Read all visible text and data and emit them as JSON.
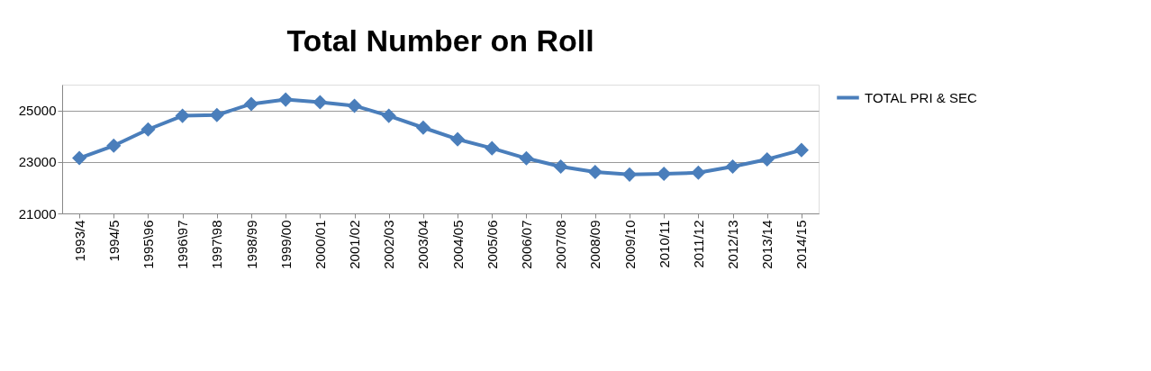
{
  "chart_data": {
    "type": "line",
    "title": "Total Number on Roll",
    "categories": [
      "1993/4",
      "1994/5",
      "1995\\96",
      "1996\\97",
      "1997\\98",
      "1998/99",
      "1999/00",
      "2000/01",
      "2001/02",
      "2002/03",
      "2003/04",
      "2004/05",
      "2005/06",
      "2006/07",
      "2007/08",
      "2008/09",
      "2009/10",
      "2010/11",
      "2011/12",
      "2012/13",
      "2013/14",
      "2014/15"
    ],
    "series": [
      {
        "name": "TOTAL PRI & SEC",
        "color": "#4a7ebb",
        "values": [
          23150,
          23630,
          24260,
          24790,
          24820,
          25250,
          25420,
          25320,
          25180,
          24790,
          24330,
          23880,
          23530,
          23140,
          22820,
          22610,
          22510,
          22540,
          22580,
          22820,
          23100,
          23460
        ]
      }
    ],
    "ylim": [
      21000,
      26000
    ],
    "yticks": [
      21000,
      23000,
      25000
    ],
    "grid": "y",
    "legend": "right",
    "marker": "diamond",
    "line_style": "solid"
  }
}
